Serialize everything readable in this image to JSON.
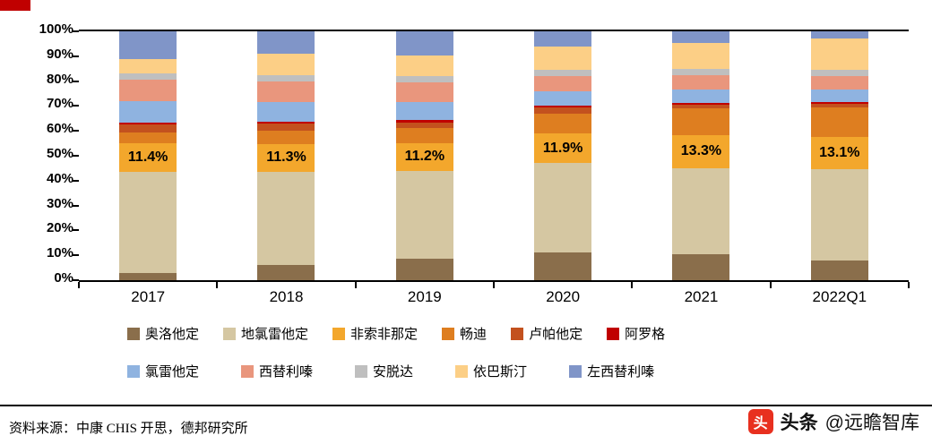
{
  "page": {
    "background": "#ffffff",
    "corner_mark_color": "#c00000"
  },
  "source": {
    "text": "资料来源：中康 CHIS 开思，德邦研究所"
  },
  "watermark": {
    "platform": "头条",
    "handle": "@远瞻智库",
    "icon_glyph": "头",
    "icon_color": "#e8301f"
  },
  "chart_data": {
    "type": "bar",
    "stacked": true,
    "percent": true,
    "title": "",
    "xlabel": "",
    "ylabel": "",
    "ylim": [
      0,
      100
    ],
    "yticks": [
      0,
      10,
      20,
      30,
      40,
      50,
      60,
      70,
      80,
      90,
      100
    ],
    "ytick_suffix": "%",
    "grid": false,
    "legend_position": "bottom",
    "categories": [
      "2017",
      "2018",
      "2019",
      "2020",
      "2021",
      "2022Q1"
    ],
    "series": [
      {
        "name": "奥洛他定",
        "color": "#8a6e4b",
        "values": [
          3.0,
          6.0,
          8.5,
          11.0,
          10.5,
          8.0
        ]
      },
      {
        "name": "地氯雷他定",
        "color": "#d5c7a2",
        "values": [
          40.5,
          37.5,
          35.5,
          36.0,
          34.5,
          36.5
        ]
      },
      {
        "name": "非索非那定",
        "color": "#f3a72c",
        "values": [
          11.4,
          11.3,
          11.2,
          11.9,
          13.3,
          13.1
        ],
        "labeled": true
      },
      {
        "name": "畅迪",
        "color": "#de7e20",
        "values": [
          4.6,
          5.2,
          5.8,
          8.1,
          10.7,
          11.9
        ]
      },
      {
        "name": "卢帕他定",
        "color": "#c3511e",
        "values": [
          3.0,
          2.8,
          2.5,
          2.5,
          1.5,
          1.5
        ]
      },
      {
        "name": "阿罗格",
        "color": "#c00000",
        "values": [
          1.0,
          1.0,
          1.0,
          0.8,
          0.8,
          0.7
        ]
      },
      {
        "name": "氯雷他定",
        "color": "#8fb3e0",
        "values": [
          8.5,
          7.7,
          7.0,
          5.7,
          5.2,
          4.8
        ]
      },
      {
        "name": "西替利嗪",
        "color": "#e9967d",
        "values": [
          8.5,
          8.5,
          8.0,
          6.0,
          6.0,
          5.5
        ]
      },
      {
        "name": "安脱达",
        "color": "#bfbfbf",
        "values": [
          2.5,
          2.5,
          2.5,
          2.5,
          2.5,
          2.5
        ]
      },
      {
        "name": "依巴斯汀",
        "color": "#fccf86",
        "values": [
          6.0,
          8.5,
          8.5,
          9.5,
          10.5,
          12.5
        ]
      },
      {
        "name": "左西替利嗪",
        "color": "#8095c8",
        "values": [
          11.0,
          9.0,
          9.5,
          6.0,
          4.5,
          3.0
        ]
      }
    ],
    "bar_labels": [
      "11.4%",
      "11.3%",
      "11.2%",
      "11.9%",
      "13.3%",
      "13.1%"
    ],
    "legend_rows": [
      6,
      5
    ]
  }
}
